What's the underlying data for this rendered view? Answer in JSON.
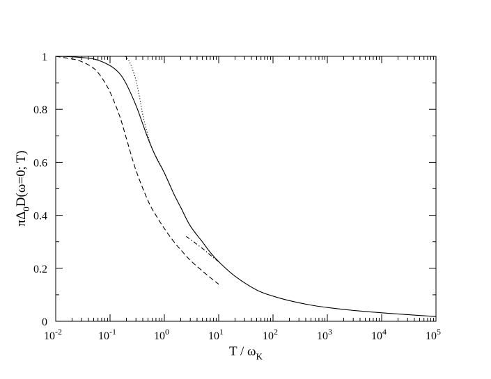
{
  "chart_data": {
    "type": "line",
    "title": "",
    "xlabel": {
      "main": "T / ω",
      "sub": "K"
    },
    "ylabel": {
      "pre": "πΔ",
      "sub": "0",
      "post": "D(ω=0; T)"
    },
    "x_scale": "log",
    "xlim": [
      0.01,
      100000
    ],
    "ylim": [
      0,
      1
    ],
    "grid": false,
    "legend": "none",
    "x_ticks": [
      {
        "base": "10",
        "exp": "-2"
      },
      {
        "base": "10",
        "exp": "-1"
      },
      {
        "base": "10",
        "exp": "0"
      },
      {
        "base": "10",
        "exp": "1"
      },
      {
        "base": "10",
        "exp": "2"
      },
      {
        "base": "10",
        "exp": "3"
      },
      {
        "base": "10",
        "exp": "4"
      },
      {
        "base": "10",
        "exp": "5"
      }
    ],
    "y_ticks": [
      "0",
      "0.2",
      "0.4",
      "0.6",
      "0.8",
      "1"
    ],
    "series": [
      {
        "style": "solid",
        "x": [
          0.01,
          0.02,
          0.05,
          0.1,
          0.15,
          0.2,
          0.3,
          0.4,
          0.5,
          0.7,
          1,
          1.5,
          2,
          3,
          5,
          7,
          10,
          20,
          50,
          100,
          200,
          500,
          1000,
          3000,
          10000,
          30000,
          100000
        ],
        "y": [
          1.0,
          0.998,
          0.99,
          0.965,
          0.935,
          0.895,
          0.815,
          0.745,
          0.69,
          0.62,
          0.56,
          0.48,
          0.43,
          0.36,
          0.3,
          0.26,
          0.225,
          0.17,
          0.118,
          0.095,
          0.078,
          0.061,
          0.052,
          0.041,
          0.032,
          0.025,
          0.018
        ]
      },
      {
        "style": "dashed",
        "x": [
          0.01,
          0.02,
          0.03,
          0.05,
          0.07,
          0.1,
          0.15,
          0.2,
          0.3,
          0.5,
          0.7,
          1,
          1.5,
          2,
          3,
          5,
          7,
          10
        ],
        "y": [
          1.0,
          0.99,
          0.98,
          0.955,
          0.92,
          0.865,
          0.775,
          0.69,
          0.57,
          0.455,
          0.4,
          0.35,
          0.3,
          0.27,
          0.23,
          0.19,
          0.165,
          0.14
        ]
      },
      {
        "style": "dotted",
        "x": [
          0.19,
          0.22,
          0.25,
          0.3,
          0.35,
          0.4,
          0.5,
          0.6,
          0.8,
          1,
          1.5,
          2,
          3,
          5,
          7,
          10
        ],
        "y": [
          1.0,
          0.985,
          0.96,
          0.91,
          0.845,
          0.78,
          0.7,
          0.65,
          0.6,
          0.56,
          0.48,
          0.43,
          0.36,
          0.3,
          0.26,
          0.225
        ]
      },
      {
        "style": "dash-dot",
        "x": [
          2.5,
          3,
          4,
          5,
          6,
          7,
          8,
          10
        ],
        "y": [
          0.32,
          0.31,
          0.29,
          0.275,
          0.262,
          0.25,
          0.24,
          0.225
        ]
      }
    ]
  }
}
